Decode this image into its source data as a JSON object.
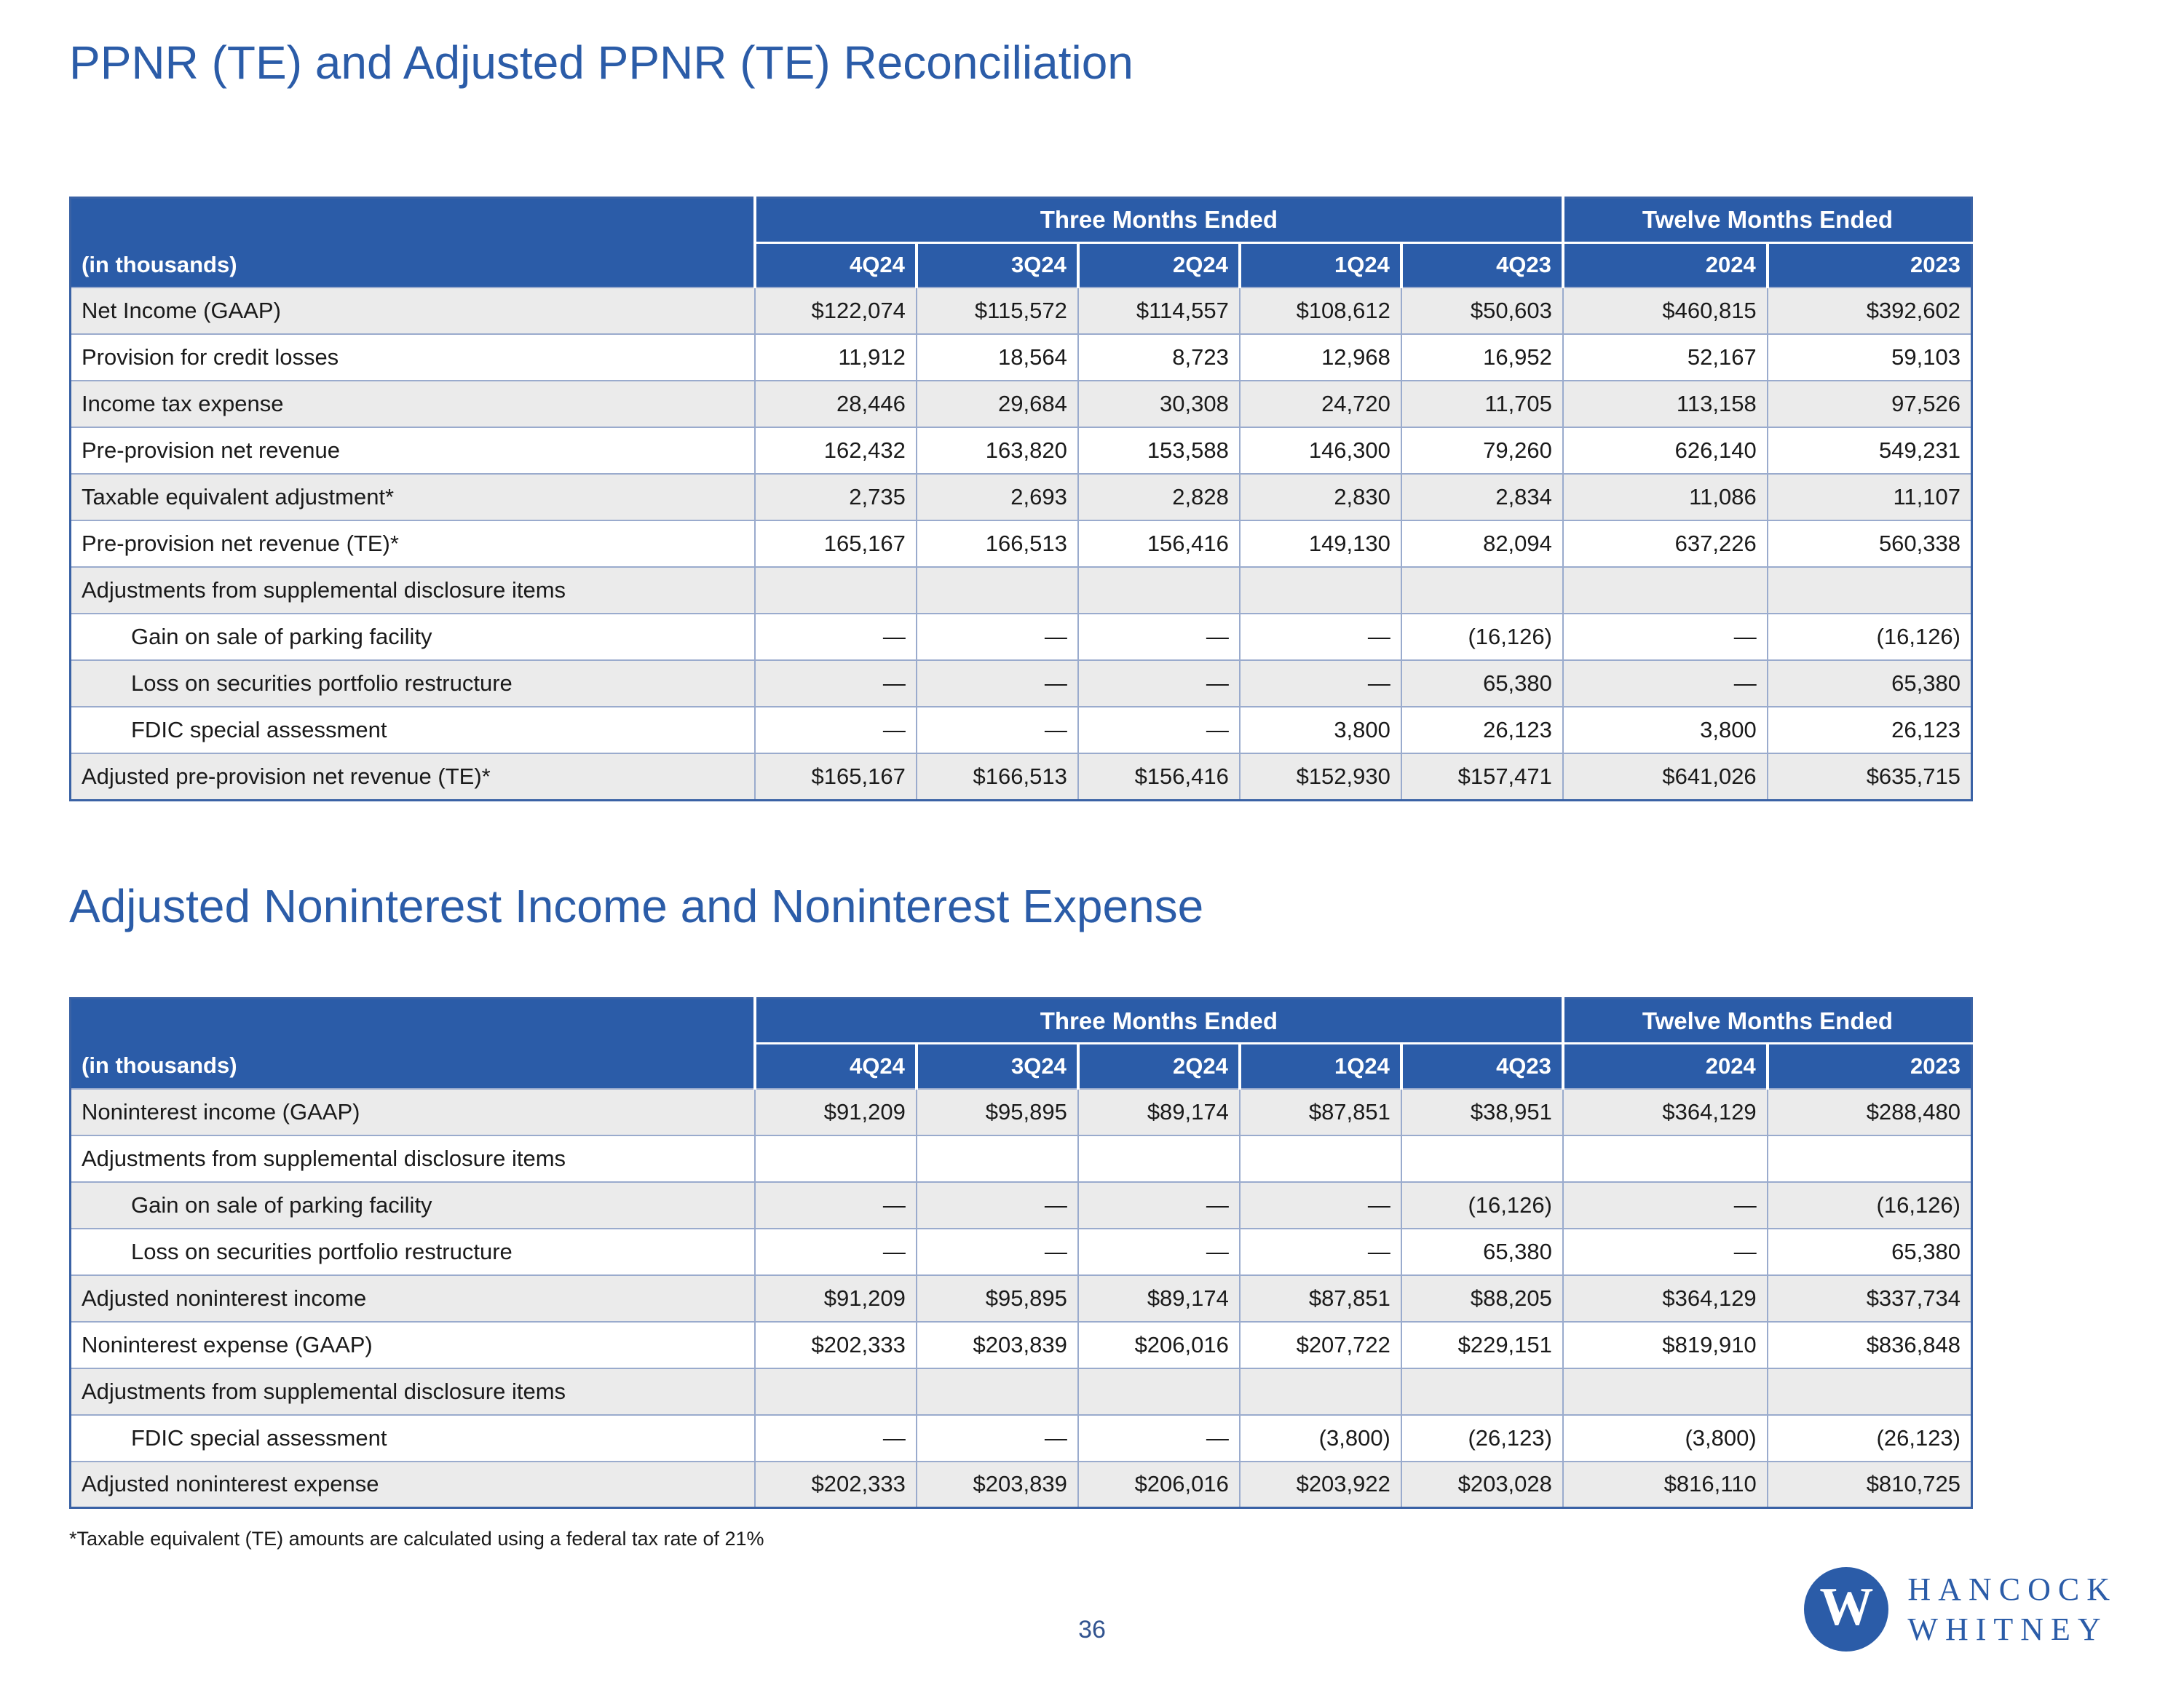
{
  "page": {
    "title1": "PPNR (TE) and Adjusted PPNR (TE) Reconciliation",
    "title2": "Adjusted Noninterest Income and Noninterest Expense",
    "footnote": "*Taxable equivalent (TE) amounts are calculated using a federal tax rate of 21%",
    "page_number": "36"
  },
  "logo": {
    "monogram": "W",
    "line1": "HANCOCK",
    "line2": "WHITNEY"
  },
  "colors": {
    "brand_blue": "#2b5ca8",
    "row_alt": "#ebebeb",
    "grid_line": "#9aabcd",
    "table_outline": "#3a62a5",
    "page_number_color": "#31538f"
  },
  "tables": [
    {
      "name": "PPNR (TE) and Adjusted PPNR (TE) Reconciliation",
      "group_headers": [
        {
          "label": "",
          "span": 1
        },
        {
          "label": "Three Months Ended",
          "span": 5
        },
        {
          "label": "Twelve Months Ended",
          "span": 2
        }
      ],
      "columns": [
        "(in thousands)",
        "4Q24",
        "3Q24",
        "2Q24",
        "1Q24",
        "4Q23",
        "2024",
        "2023"
      ],
      "rows": [
        {
          "label": "Net Income (GAAP)",
          "indent": false,
          "values": [
            "$122,074",
            "$115,572",
            "$114,557",
            "$108,612",
            "$50,603",
            "$460,815",
            "$392,602"
          ]
        },
        {
          "label": "Provision for credit losses",
          "indent": false,
          "values": [
            "11,912",
            "18,564",
            "8,723",
            "12,968",
            "16,952",
            "52,167",
            "59,103"
          ]
        },
        {
          "label": "Income tax expense",
          "indent": false,
          "values": [
            "28,446",
            "29,684",
            "30,308",
            "24,720",
            "11,705",
            "113,158",
            "97,526"
          ]
        },
        {
          "label": "Pre-provision net revenue",
          "indent": false,
          "values": [
            "162,432",
            "163,820",
            "153,588",
            "146,300",
            "79,260",
            "626,140",
            "549,231"
          ]
        },
        {
          "label": "Taxable equivalent adjustment*",
          "indent": false,
          "values": [
            "2,735",
            "2,693",
            "2,828",
            "2,830",
            "2,834",
            "11,086",
            "11,107"
          ]
        },
        {
          "label": "Pre-provision net revenue (TE)*",
          "indent": false,
          "values": [
            "165,167",
            "166,513",
            "156,416",
            "149,130",
            "82,094",
            "637,226",
            "560,338"
          ]
        },
        {
          "label": "Adjustments from supplemental disclosure items",
          "indent": false,
          "values": [
            "",
            "",
            "",
            "",
            "",
            "",
            ""
          ]
        },
        {
          "label": "Gain on sale of parking facility",
          "indent": true,
          "values": [
            "—",
            "—",
            "—",
            "—",
            "(16,126)",
            "—",
            "(16,126)"
          ]
        },
        {
          "label": "Loss on securities portfolio restructure",
          "indent": true,
          "values": [
            "—",
            "—",
            "—",
            "—",
            "65,380",
            "—",
            "65,380"
          ]
        },
        {
          "label": "FDIC special assessment",
          "indent": true,
          "values": [
            "—",
            "—",
            "—",
            "3,800",
            "26,123",
            "3,800",
            "26,123"
          ]
        },
        {
          "label": "Adjusted pre-provision net revenue (TE)*",
          "indent": false,
          "values": [
            "$165,167",
            "$166,513",
            "$156,416",
            "$152,930",
            "$157,471",
            "$641,026",
            "$635,715"
          ]
        }
      ]
    },
    {
      "name": "Adjusted Noninterest Income and Noninterest Expense",
      "group_headers": [
        {
          "label": "",
          "span": 1
        },
        {
          "label": "Three Months Ended",
          "span": 5
        },
        {
          "label": "Twelve Months Ended",
          "span": 2
        }
      ],
      "columns": [
        "(in thousands)",
        "4Q24",
        "3Q24",
        "2Q24",
        "1Q24",
        "4Q23",
        "2024",
        "2023"
      ],
      "rows": [
        {
          "label": "Noninterest income (GAAP)",
          "indent": false,
          "values": [
            "$91,209",
            "$95,895",
            "$89,174",
            "$87,851",
            "$38,951",
            "$364,129",
            "$288,480"
          ]
        },
        {
          "label": "Adjustments from supplemental disclosure items",
          "indent": false,
          "values": [
            "",
            "",
            "",
            "",
            "",
            "",
            ""
          ]
        },
        {
          "label": "Gain on sale of parking facility",
          "indent": true,
          "values": [
            "—",
            "—",
            "—",
            "—",
            "(16,126)",
            "—",
            "(16,126)"
          ]
        },
        {
          "label": "Loss on securities portfolio restructure",
          "indent": true,
          "values": [
            "—",
            "—",
            "—",
            "—",
            "65,380",
            "—",
            "65,380"
          ]
        },
        {
          "label": "Adjusted noninterest income",
          "indent": false,
          "values": [
            "$91,209",
            "$95,895",
            "$89,174",
            "$87,851",
            "$88,205",
            "$364,129",
            "$337,734"
          ]
        },
        {
          "label": "Noninterest expense (GAAP)",
          "indent": false,
          "values": [
            "$202,333",
            "$203,839",
            "$206,016",
            "$207,722",
            "$229,151",
            "$819,910",
            "$836,848"
          ]
        },
        {
          "label": "Adjustments from supplemental disclosure items",
          "indent": false,
          "values": [
            "",
            "",
            "",
            "",
            "",
            "",
            ""
          ]
        },
        {
          "label": "FDIC special assessment",
          "indent": true,
          "values": [
            "—",
            "—",
            "—",
            "(3,800)",
            "(26,123)",
            "(3,800)",
            "(26,123)"
          ]
        },
        {
          "label": "Adjusted noninterest expense",
          "indent": false,
          "values": [
            "$202,333",
            "$203,839",
            "$206,016",
            "$203,922",
            "$203,028",
            "$816,110",
            "$810,725"
          ]
        }
      ]
    }
  ]
}
